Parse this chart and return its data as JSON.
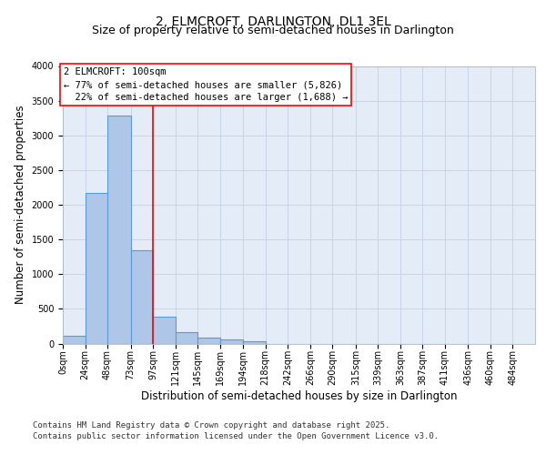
{
  "title": "2, ELMCROFT, DARLINGTON, DL1 3EL",
  "subtitle": "Size of property relative to semi-detached houses in Darlington",
  "xlabel": "Distribution of semi-detached houses by size in Darlington",
  "ylabel": "Number of semi-detached properties",
  "categories": [
    "0sqm",
    "24sqm",
    "48sqm",
    "73sqm",
    "97sqm",
    "121sqm",
    "145sqm",
    "169sqm",
    "194sqm",
    "218sqm",
    "242sqm",
    "266sqm",
    "290sqm",
    "315sqm",
    "339sqm",
    "363sqm",
    "387sqm",
    "411sqm",
    "436sqm",
    "460sqm",
    "484sqm"
  ],
  "bin_edges": [
    0,
    24,
    48,
    73,
    97,
    121,
    145,
    169,
    194,
    218,
    242,
    266,
    290,
    315,
    339,
    363,
    387,
    411,
    436,
    460,
    484
  ],
  "bin_widths": [
    24,
    25,
    25,
    24,
    24,
    24,
    24,
    25,
    24,
    24,
    24,
    24,
    25,
    24,
    24,
    24,
    24,
    25,
    24,
    24,
    24
  ],
  "values": [
    110,
    2170,
    3280,
    1350,
    390,
    170,
    90,
    55,
    35,
    0,
    0,
    0,
    0,
    0,
    0,
    0,
    0,
    0,
    0,
    0
  ],
  "bar_color": "#aec6e8",
  "bar_edge_color": "#5b9bd5",
  "bar_edge_width": 0.8,
  "grid_color": "#c8d4e8",
  "bg_color": "#e4ecf7",
  "property_line_x": 97,
  "property_label": "2 ELMCROFT: 100sqm",
  "pct_smaller": 77,
  "count_smaller": "5,826",
  "pct_larger": 22,
  "count_larger": "1,688",
  "ylim": [
    0,
    4000
  ],
  "yticks": [
    0,
    500,
    1000,
    1500,
    2000,
    2500,
    3000,
    3500,
    4000
  ],
  "footer1": "Contains HM Land Registry data © Crown copyright and database right 2025.",
  "footer2": "Contains public sector information licensed under the Open Government Licence v3.0.",
  "title_fontsize": 10,
  "subtitle_fontsize": 9,
  "axis_label_fontsize": 8.5,
  "tick_fontsize": 7,
  "annotation_fontsize": 7.5,
  "footer_fontsize": 6.5
}
